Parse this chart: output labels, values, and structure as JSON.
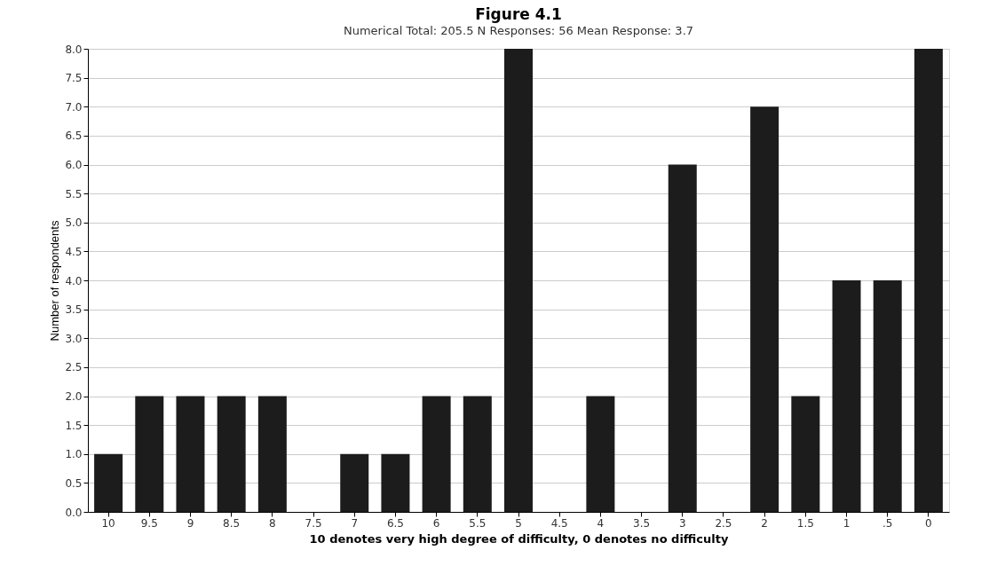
{
  "chart_data": {
    "type": "bar",
    "title": "Figure 4.1",
    "subtitle": "Numerical Total: 205.5   N Responses: 56   Mean Response: 3.7",
    "xlabel": "10 denotes very high degree of difficulty, 0 denotes no difficulty",
    "ylabel": "Number of respondents",
    "categories": [
      "10",
      "9.5",
      "9",
      "8.5",
      "8",
      "7.5",
      "7",
      "6.5",
      "6",
      "5.5",
      "5",
      "4.5",
      "4",
      "3.5",
      "3",
      "2.5",
      "2",
      "1.5",
      "1",
      ".5",
      "0"
    ],
    "values": [
      1,
      2,
      2,
      2,
      2,
      0,
      1,
      1,
      2,
      2,
      8,
      0,
      2,
      0,
      6,
      0,
      7,
      2,
      4,
      4,
      8
    ],
    "color": "#1c1c1c",
    "ylim": [
      0,
      8
    ],
    "yticks": [
      {
        "value": 0,
        "label": "0.0"
      },
      {
        "value": 0.5,
        "label": "0.5"
      },
      {
        "value": 1,
        "label": "1.0"
      },
      {
        "value": 1.5,
        "label": "1.5"
      },
      {
        "value": 2,
        "label": "2.0"
      },
      {
        "value": 2.5,
        "label": "2.5"
      },
      {
        "value": 3,
        "label": "3.0"
      },
      {
        "value": 3.5,
        "label": "3.5"
      },
      {
        "value": 4,
        "label": "4.0"
      },
      {
        "value": 4.5,
        "label": "4.5"
      },
      {
        "value": 5,
        "label": "5.0"
      },
      {
        "value": 5.5,
        "label": "5.5"
      },
      {
        "value": 6,
        "label": "6.0"
      },
      {
        "value": 6.5,
        "label": "6.5"
      },
      {
        "value": 7,
        "label": "7.0"
      },
      {
        "value": 7.5,
        "label": "7.5"
      },
      {
        "value": 8,
        "label": "8.0"
      }
    ],
    "grid": "y"
  }
}
